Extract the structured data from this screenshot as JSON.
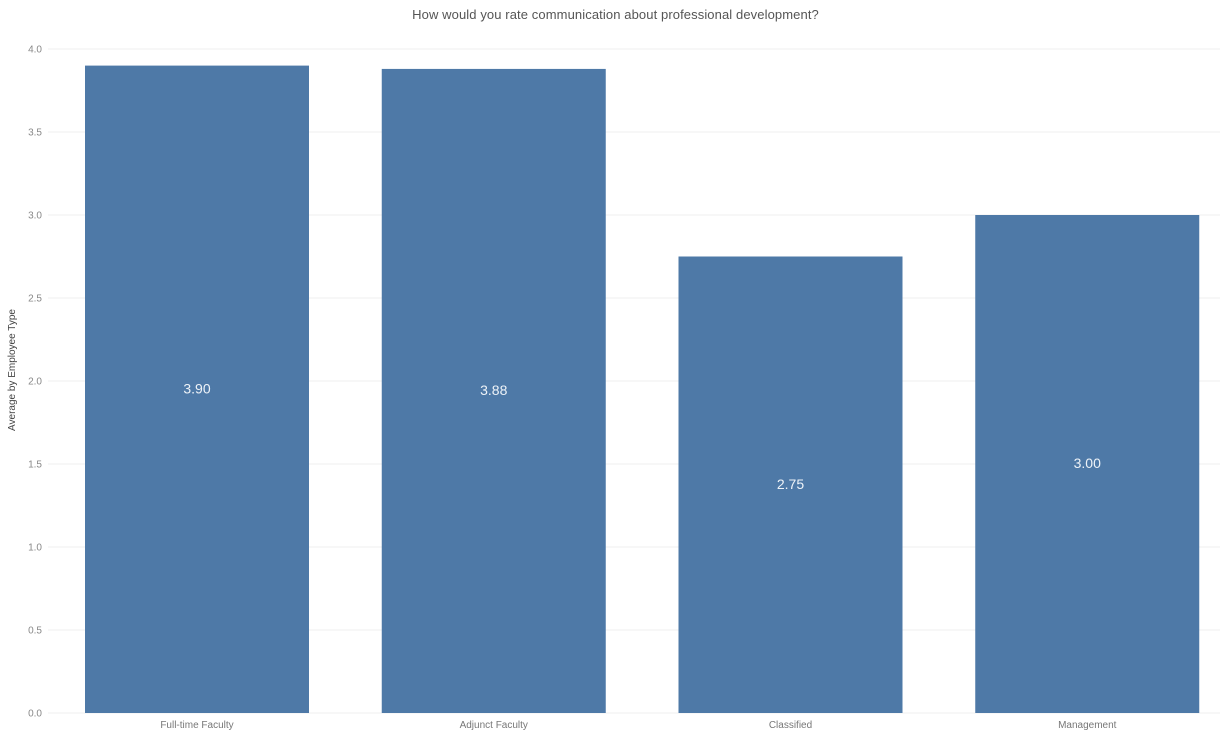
{
  "chart_data": {
    "type": "bar",
    "title": "How would you rate communication about professional development?",
    "ylabel": "Average by Employee Type",
    "xlabel": "",
    "categories": [
      "Full-time Faculty",
      "Adjunct Faculty",
      "Classified",
      "Management"
    ],
    "values": [
      3.9,
      3.88,
      2.75,
      3.0
    ],
    "data_labels": [
      "3.90",
      "3.88",
      "2.75",
      "3.00"
    ],
    "ylim": [
      0,
      4.0
    ],
    "yticks": [
      "0.0",
      "0.5",
      "1.0",
      "1.5",
      "2.0",
      "2.5",
      "3.0",
      "3.5",
      "4.0"
    ],
    "grid": true,
    "legend": "none",
    "colors": {
      "bar": "#4e79a7",
      "grid": "#efefef",
      "data_label": "#eef3f8"
    }
  }
}
